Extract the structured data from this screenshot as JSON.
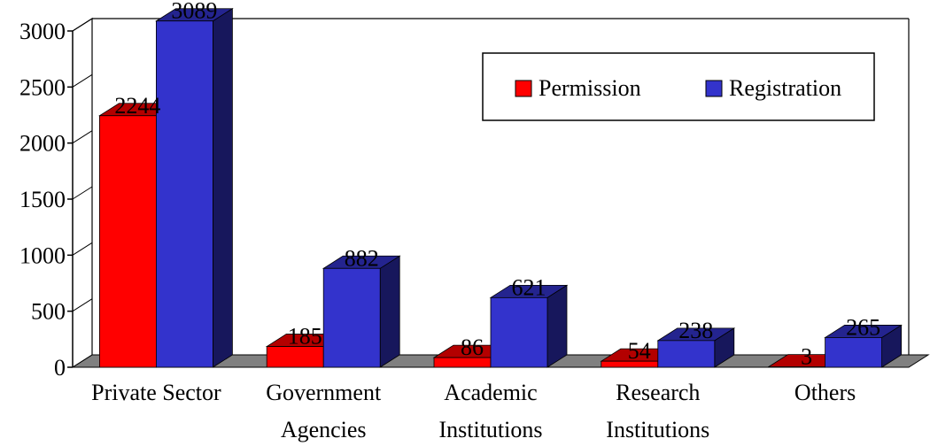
{
  "chart_data": {
    "type": "bar",
    "title": "",
    "xlabel": "",
    "ylabel": "",
    "categories": [
      [
        "Private Sector"
      ],
      [
        "Government",
        "Agencies"
      ],
      [
        "Academic",
        "Institutions"
      ],
      [
        "Research",
        "Institutions"
      ],
      [
        "Others"
      ]
    ],
    "series": [
      {
        "name": "Permission",
        "values": [
          2244,
          185,
          86,
          54,
          3
        ]
      },
      {
        "name": "Registration",
        "values": [
          3089,
          882,
          621,
          238,
          265
        ]
      }
    ],
    "ylim": [
      0,
      3000
    ],
    "yticks": [
      0,
      500,
      1000,
      1500,
      2000,
      2500,
      3000
    ],
    "grid": false,
    "legend_position": "top-right",
    "style": "3d",
    "colors": {
      "Permission": "#ff0000",
      "Registration": "#3333cc"
    }
  }
}
